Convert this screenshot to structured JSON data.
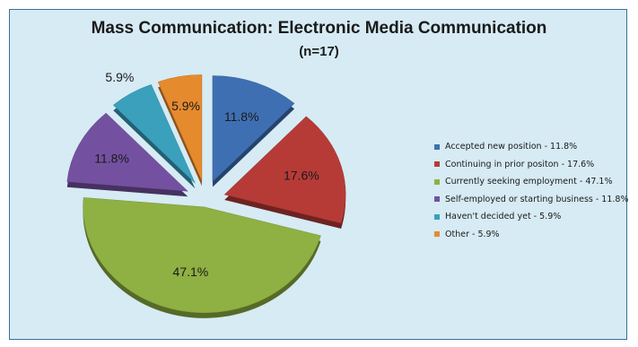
{
  "chart_data": {
    "type": "pie",
    "title": "Mass Communication: Electronic Media Communication",
    "subtitle": "(n=17)",
    "legend_position": "right",
    "slices": [
      {
        "label": "Accepted new position - 11.8%",
        "value": 11.8,
        "display": "11.8%",
        "color": "#3f6fb3"
      },
      {
        "label": "Continuing in prior positon - 17.6%",
        "value": 17.6,
        "display": "17.6%",
        "color": "#b63b37"
      },
      {
        "label": "Currently seeking employment - 47.1%",
        "value": 47.1,
        "display": "47.1%",
        "color": "#8fb043"
      },
      {
        "label": "Self-employed or starting business - 11.8%",
        "value": 11.8,
        "display": "11.8%",
        "color": "#7451a0"
      },
      {
        "label": "Haven't decided yet - 5.9%",
        "value": 5.9,
        "display": "5.9%",
        "color": "#3aa0bc"
      },
      {
        "label": "Other - 5.9%",
        "value": 5.9,
        "display": "5.9%",
        "color": "#e68a2e"
      }
    ]
  }
}
